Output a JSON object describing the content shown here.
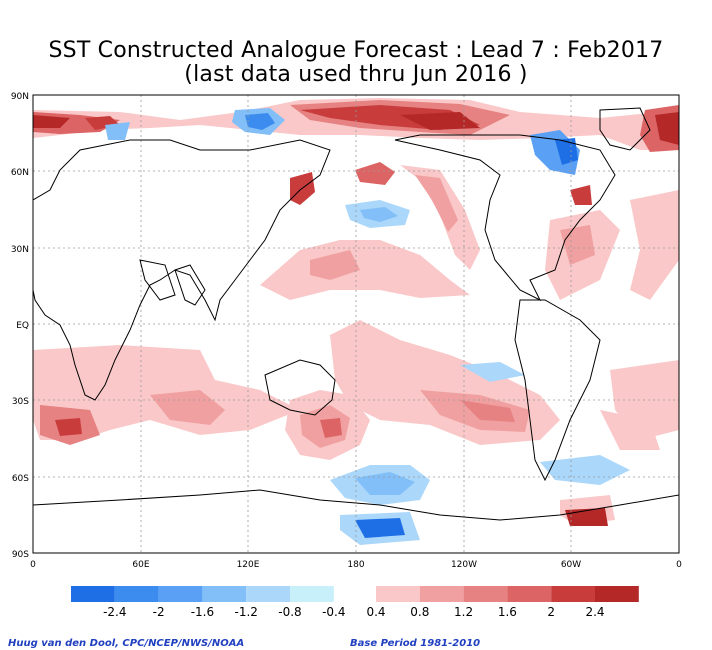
{
  "title_line1": "SST Constructed Analogue Forecast : Lead 7 : Feb2017",
  "title_line2": "(last data used thru Jun 2016 )",
  "lat_labels": [
    "90N",
    "60N",
    "30N",
    "EQ",
    "30S",
    "60S",
    "90S"
  ],
  "lon_labels": [
    "0",
    "60E",
    "120E",
    "180",
    "120W",
    "60W",
    "0"
  ],
  "colorbar": {
    "negative_colors": [
      "#1e6ee6",
      "#3c8cf0",
      "#5aa0f5",
      "#82bef8",
      "#aad7fa",
      "#c8f0fa"
    ],
    "positive_colors": [
      "#fac8c8",
      "#f0a0a0",
      "#e68282",
      "#dc6464",
      "#c83c3c",
      "#b42828"
    ],
    "tick_labels": [
      "-2.4",
      "-2",
      "-1.6",
      "-1.2",
      "-0.8",
      "-0.4",
      "0.4",
      "0.8",
      "1.2",
      "1.6",
      "2",
      "2.4"
    ]
  },
  "credit_left": "Huug van den Dool, CPC/NCEP/NWS/NOAA",
  "credit_right": "Base Period 1981-2010"
}
